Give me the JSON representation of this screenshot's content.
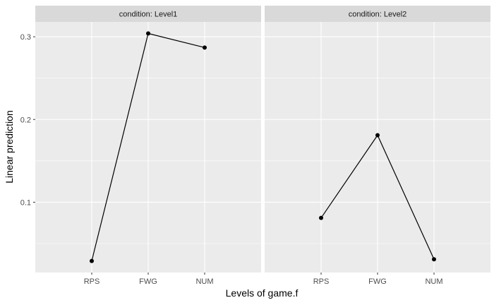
{
  "chart_data": {
    "type": "line",
    "facet_variable": "condition",
    "xlabel": "Levels of game.f",
    "ylabel": "Linear prediction",
    "categories": [
      "RPS",
      "FWG",
      "NUM"
    ],
    "y_ticks": [
      0.1,
      0.2,
      0.3
    ],
    "y_tick_labels": [
      "0.1",
      "0.2",
      "0.3"
    ],
    "ylim": [
      0.015,
      0.318
    ],
    "grid": true,
    "panels": [
      {
        "strip_label": "condition: Level1",
        "values": [
          0.029,
          0.304,
          0.287
        ]
      },
      {
        "strip_label": "condition: Level2",
        "values": [
          0.081,
          0.181,
          0.031
        ]
      }
    ]
  },
  "colors": {
    "panel_background": "#ebebeb",
    "strip_background": "#d9d9d9",
    "grid": "#ffffff",
    "line": "#000000"
  }
}
